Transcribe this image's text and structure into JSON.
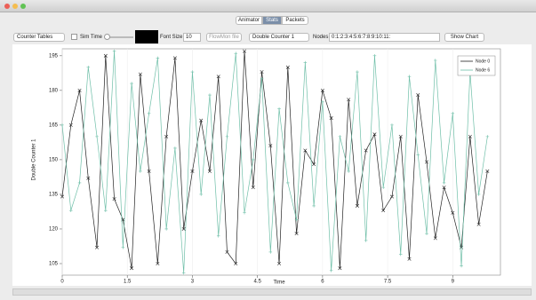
{
  "tabs": [
    "Animator",
    "Stats",
    "Packets"
  ],
  "toolbar": {
    "table_select": "Counter Tables",
    "sim_time": "Sim Time",
    "font_size_label": "Font Size",
    "font_size": "10",
    "flowmon_button": "FlowMon file",
    "counter_select": "Double Counter 1",
    "nodes_label": "Nodes",
    "nodes_input": "0:1:2:3:4:5:6:7:8:9:10:11:",
    "show_chart": "Show Chart"
  },
  "chart_data": {
    "type": "line",
    "xlabel": "Time",
    "ylabel": "Double Counter 1",
    "x": [
      0,
      0.2,
      0.4,
      0.6,
      0.8,
      1,
      1.2,
      1.4,
      1.6,
      1.8,
      2,
      2.2,
      2.4,
      2.6,
      2.8,
      3,
      3.2,
      3.4,
      3.6,
      3.8,
      4,
      4.2,
      4.4,
      4.6,
      4.8,
      5,
      5.2,
      5.4,
      5.6,
      5.8,
      6,
      6.2,
      6.4,
      6.6,
      6.8,
      7,
      7.2,
      7.4,
      7.6,
      7.8,
      8,
      8.2,
      8.4,
      8.6,
      8.8,
      9,
      9.2,
      9.4,
      9.6,
      9.8
    ],
    "series": [
      {
        "name": "Node 0",
        "color": "#222222",
        "marker": "x",
        "values": [
          134,
          165,
          180,
          142,
          112,
          195,
          133,
          124,
          103,
          187,
          145,
          105,
          160,
          194,
          120,
          145,
          167,
          145,
          186,
          110,
          105,
          197,
          138,
          188,
          156,
          105,
          190,
          118,
          154,
          148,
          180,
          168,
          103,
          176,
          130,
          154,
          161,
          128,
          134,
          160,
          107,
          178,
          149,
          116,
          138,
          127,
          112,
          160,
          122,
          145
        ]
      },
      {
        "name": "Node 6",
        "color": "#6fbfa8",
        "marker": "+",
        "values": [
          165,
          128,
          140,
          190,
          160,
          128,
          197,
          112,
          183,
          145,
          170,
          194,
          120,
          155,
          101,
          188,
          135,
          178,
          117,
          160,
          196,
          127,
          150,
          185,
          110,
          172,
          140,
          124,
          192,
          130,
          175,
          102,
          160,
          145,
          188,
          115,
          195,
          138,
          165,
          109,
          186,
          152,
          118,
          193,
          140,
          170,
          104,
          188,
          135,
          160
        ]
      }
    ],
    "xlim": [
      0,
      10.1
    ],
    "ylim": [
      100,
      198
    ],
    "xticks": [
      0,
      1.5,
      3,
      4.5,
      6,
      7.5,
      9
    ],
    "yticks": [
      105,
      120,
      135,
      150,
      165,
      180,
      195
    ],
    "grid": true,
    "legend": "upper right"
  }
}
